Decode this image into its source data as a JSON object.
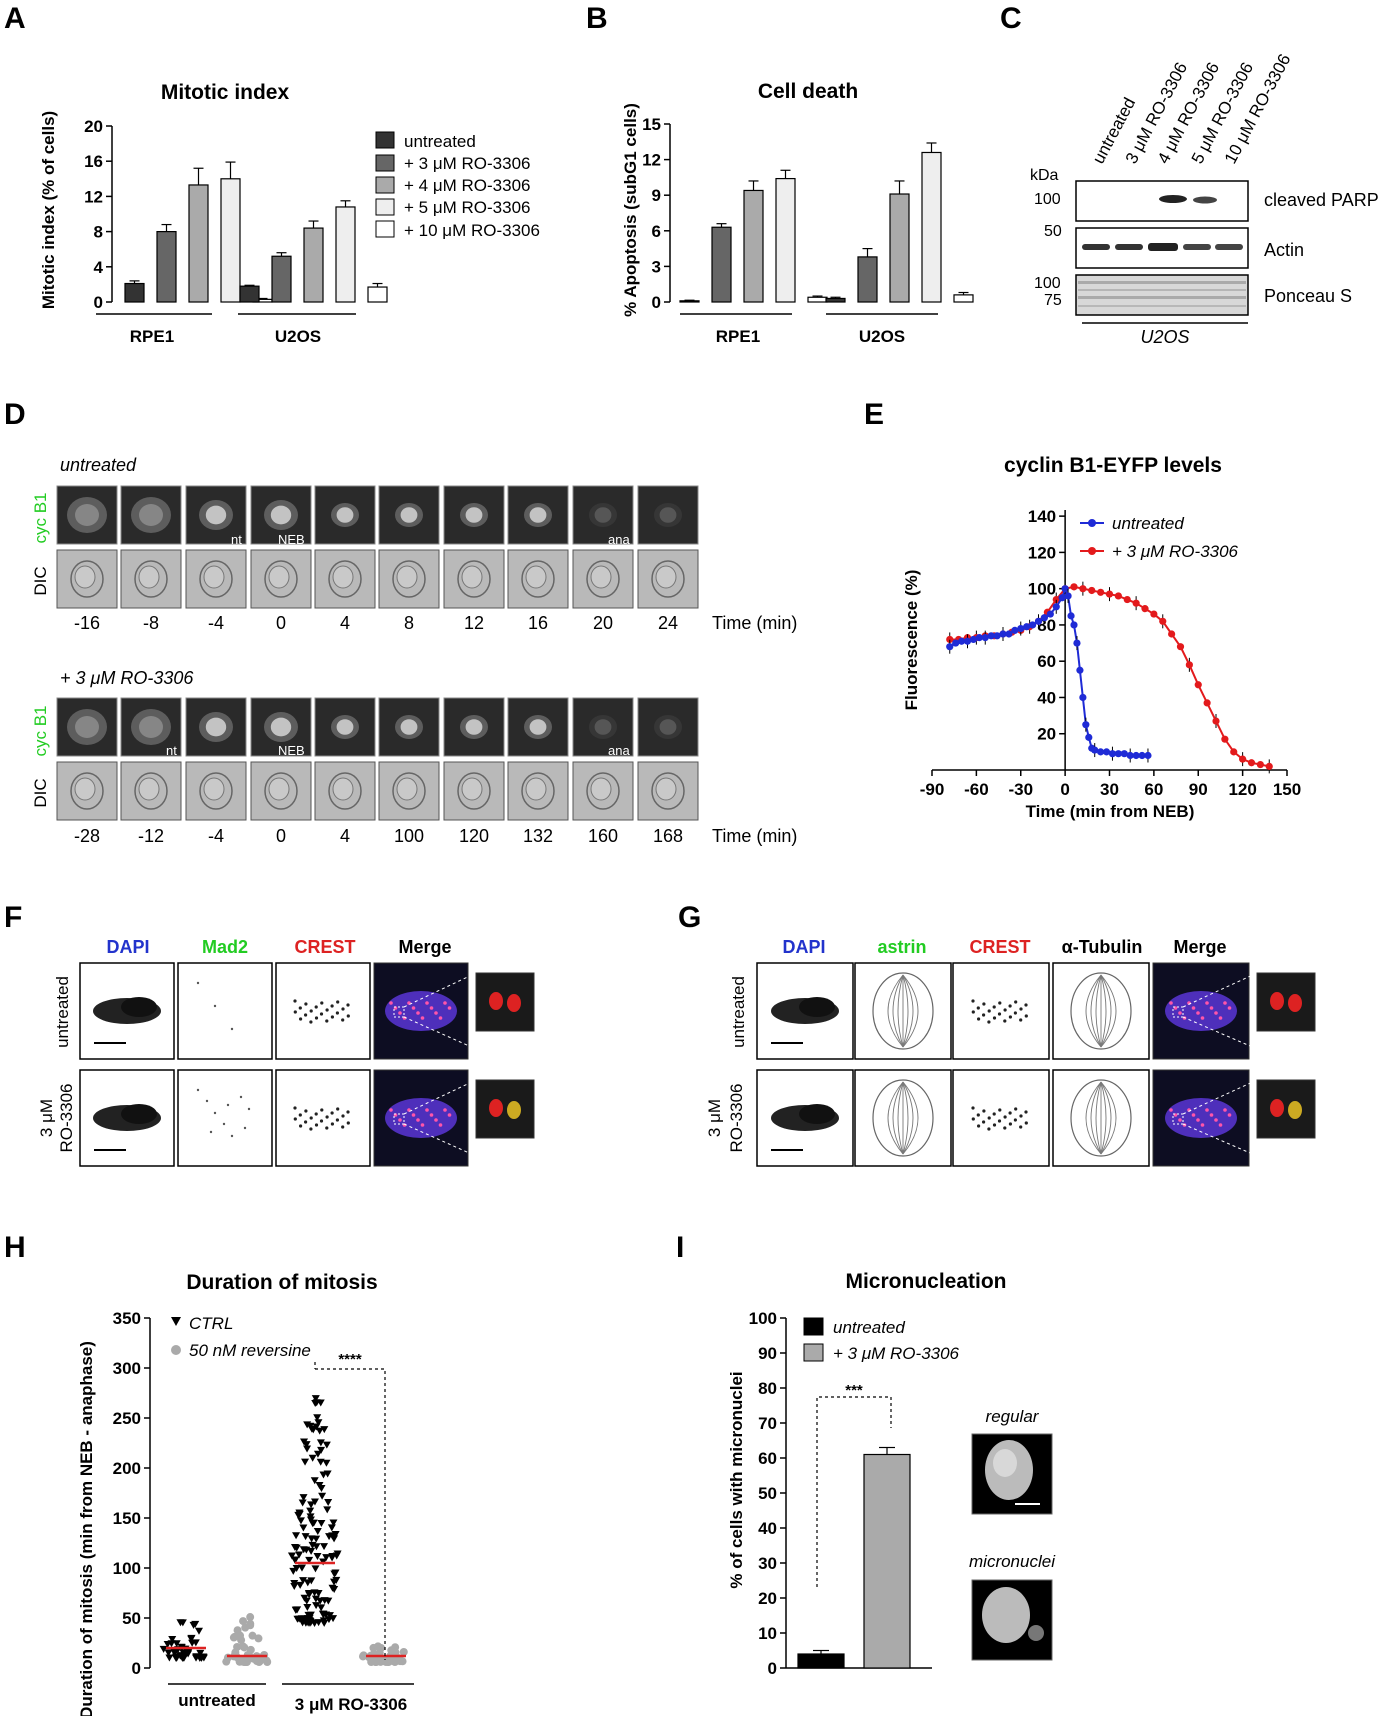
{
  "panels": {
    "A": {
      "letter": "A",
      "title": "Mitotic index",
      "ylabel": "Mitotic index (% of cells)",
      "yticks": [
        "20",
        "16",
        "12",
        "8",
        "4",
        "0"
      ],
      "groups": [
        "RPE1",
        "U2OS"
      ]
    },
    "B": {
      "letter": "B",
      "title": "Cell death",
      "ylabel": "% Apoptosis (subG1 cells)",
      "yticks": [
        "15",
        "12",
        "9",
        "6",
        "3",
        "0"
      ],
      "groups": [
        "RPE1",
        "U2OS"
      ]
    },
    "C": {
      "letter": "C",
      "lanes": [
        "untreated",
        "3 μM RO-3306",
        "4 μM RO-3306",
        "5 μM RO-3306",
        "10 μM RO-3306"
      ],
      "kda": "kDa",
      "mw": [
        "100",
        "50",
        "100",
        "75"
      ],
      "blots": [
        "cleaved PARP",
        "Actin",
        "Ponceau S"
      ],
      "cell_line": "U2OS"
    },
    "D": {
      "letter": "D",
      "cond1": "untreated",
      "cond2": "+ 3 μM RO-3306",
      "row_cyc": "cyc B1",
      "row_dic": "DIC",
      "times1": [
        "-16",
        "-8",
        "-4",
        "0",
        "4",
        "8",
        "12",
        "16",
        "20",
        "24"
      ],
      "times2": [
        "-28",
        "-12",
        "-4",
        "0",
        "4",
        "100",
        "120",
        "132",
        "160",
        "168"
      ],
      "time_unit": "Time (min)",
      "tags1": {
        "nt": "nt",
        "neb": "NEB",
        "ana": "ana"
      },
      "tags2": {
        "nt": "nt",
        "neb": "NEB",
        "ana": "ana"
      }
    },
    "E": {
      "letter": "E",
      "title": "cyclin B1-EYFP levels",
      "ylabel": "Fluorescence (%)",
      "xlabel": "Time (min from NEB)",
      "yticks": [
        "140",
        "120",
        "100",
        "80",
        "60",
        "40",
        "20"
      ],
      "xticks": [
        "-90",
        "-60",
        "-30",
        "0",
        "30",
        "60",
        "90",
        "120",
        "150"
      ],
      "legend": [
        "untreated",
        "+ 3 μM RO-3306"
      ]
    },
    "F": {
      "letter": "F",
      "cols": [
        "DAPI",
        "Mad2",
        "CREST",
        "Merge"
      ],
      "rows": [
        "untreated",
        "3 μM",
        "RO-3306"
      ]
    },
    "G": {
      "letter": "G",
      "cols": [
        "DAPI",
        "astrin",
        "CREST",
        "α-Tubulin",
        "Merge"
      ],
      "rows": [
        "untreated",
        "3 μM",
        "RO-3306"
      ]
    },
    "H": {
      "letter": "H",
      "title": "Duration of mitosis",
      "ylabel": "Duration of mitosis (min from NEB - anaphase)",
      "yticks": [
        "350",
        "300",
        "250",
        "200",
        "150",
        "100",
        "50",
        "0"
      ],
      "groups": [
        "untreated",
        "3 μM RO-3306"
      ],
      "legend": [
        "CTRL",
        "50 nM reversine"
      ],
      "sig": "****"
    },
    "I": {
      "letter": "I",
      "title": "Micronucleation",
      "ylabel": "% of cells with micronuclei",
      "yticks": [
        "100",
        "90",
        "80",
        "70",
        "60",
        "50",
        "40",
        "30",
        "20",
        "10",
        "0"
      ],
      "legend": [
        "untreated",
        "+ 3 μM RO-3306"
      ],
      "sig": "***",
      "img1": "regular",
      "img2": "micronuclei"
    }
  },
  "legendA": [
    "untreated",
    "+ 3 μM RO-3306",
    "+ 4 μM RO-3306",
    "+ 5 μM RO-3306",
    "+ 10 μM RO-3306"
  ],
  "colors": {
    "c0": "#333333",
    "c1": "#666666",
    "c2": "#aaaaaa",
    "c3": "#eeeeee",
    "c4": "#ffffff",
    "blue": "#1f2bd6",
    "red": "#e31a1c",
    "green": "#22cc22",
    "sig_red": "#dd2222"
  },
  "chart_data": [
    {
      "type": "bar",
      "panel": "A",
      "title": "Mitotic index",
      "ylabel": "Mitotic index (% of cells)",
      "ylim": [
        0,
        20
      ],
      "categories": [
        "RPE1",
        "U2OS"
      ],
      "series": [
        {
          "name": "untreated",
          "values": [
            2.1,
            1.8
          ],
          "err": [
            0.3,
            0.1
          ]
        },
        {
          "name": "+ 3 μM RO-3306",
          "values": [
            8.0,
            5.2
          ],
          "err": [
            0.8,
            0.4
          ]
        },
        {
          "name": "+ 4 μM RO-3306",
          "values": [
            13.3,
            8.4
          ],
          "err": [
            1.9,
            0.8
          ]
        },
        {
          "name": "+ 5 μM RO-3306",
          "values": [
            14.0,
            10.8
          ],
          "err": [
            1.9,
            0.7
          ]
        },
        {
          "name": "+ 10 μM RO-3306",
          "values": [
            0.3,
            1.7
          ],
          "err": [
            0.1,
            0.4
          ]
        }
      ]
    },
    {
      "type": "bar",
      "panel": "B",
      "title": "Cell death",
      "ylabel": "% Apoptosis (subG1 cells)",
      "ylim": [
        0,
        15
      ],
      "categories": [
        "RPE1",
        "U2OS"
      ],
      "series": [
        {
          "name": "untreated",
          "values": [
            0.1,
            0.3
          ],
          "err": [
            0.05,
            0.1
          ]
        },
        {
          "name": "+ 3 μM RO-3306",
          "values": [
            6.3,
            3.8
          ],
          "err": [
            0.3,
            0.7
          ]
        },
        {
          "name": "+ 4 μM RO-3306",
          "values": [
            9.4,
            9.1
          ],
          "err": [
            0.8,
            1.1
          ]
        },
        {
          "name": "+ 5 μM RO-3306",
          "values": [
            10.4,
            12.6
          ],
          "err": [
            0.7,
            0.8
          ]
        },
        {
          "name": "+ 10 μM RO-3306",
          "values": [
            0.4,
            0.6
          ],
          "err": [
            0.1,
            0.2
          ]
        }
      ]
    },
    {
      "type": "line",
      "panel": "E",
      "title": "cyclin B1-EYFP levels",
      "xlabel": "Time (min from NEB)",
      "ylabel": "Fluorescence (%)",
      "xlim": [
        -90,
        150
      ],
      "ylim": [
        0,
        140
      ],
      "series": [
        {
          "name": "untreated",
          "x": [
            -78,
            -74,
            -70,
            -66,
            -62,
            -58,
            -54,
            -50,
            -46,
            -42,
            -38,
            -34,
            -30,
            -26,
            -22,
            -18,
            -14,
            -10,
            -6,
            -2,
            0,
            2,
            4,
            6,
            8,
            10,
            12,
            14,
            16,
            18,
            20,
            24,
            28,
            32,
            36,
            40,
            44,
            48,
            52,
            56
          ],
          "y": [
            68,
            70,
            71,
            71,
            72,
            73,
            73,
            74,
            74,
            75,
            75,
            77,
            78,
            79,
            80,
            82,
            84,
            86,
            90,
            95,
            100,
            96,
            85,
            80,
            70,
            55,
            40,
            25,
            18,
            12,
            11,
            10,
            10,
            9,
            9,
            9,
            8,
            8,
            8,
            8
          ]
        },
        {
          "name": "+ 3 μM RO-3306",
          "x": [
            -78,
            -72,
            -66,
            -60,
            -54,
            -48,
            -42,
            -36,
            -30,
            -24,
            -18,
            -12,
            -6,
            0,
            6,
            12,
            18,
            24,
            30,
            36,
            42,
            48,
            54,
            60,
            66,
            72,
            78,
            84,
            90,
            96,
            102,
            108,
            114,
            120,
            126,
            132,
            138
          ],
          "y": [
            72,
            72,
            73,
            73,
            74,
            74,
            75,
            76,
            77,
            79,
            82,
            87,
            94,
            100,
            101,
            100,
            99,
            98,
            97,
            96,
            94,
            92,
            89,
            86,
            82,
            75,
            68,
            58,
            47,
            37,
            27,
            17,
            10,
            6,
            4,
            3,
            2
          ]
        }
      ]
    },
    {
      "type": "scatter",
      "panel": "H",
      "title": "Duration of mitosis",
      "ylabel": "Duration of mitosis (min from NEB - anaphase)",
      "ylim": [
        0,
        350
      ],
      "categories": [
        "untreated",
        "3 μM RO-3306"
      ],
      "series": [
        {
          "name": "CTRL",
          "mean": [
            20,
            105
          ],
          "range": [
            [
              10,
              50
            ],
            [
              45,
              280
            ]
          ]
        },
        {
          "name": "50 nM reversine",
          "mean": [
            12,
            12
          ],
          "range": [
            [
              6,
              55
            ],
            [
              6,
              22
            ]
          ]
        }
      ]
    },
    {
      "type": "bar",
      "panel": "I",
      "title": "Micronucleation",
      "ylabel": "% of cells with micronuclei",
      "ylim": [
        0,
        100
      ],
      "categories": [
        "untreated",
        "+ 3 μM RO-3306"
      ],
      "values": [
        4,
        61
      ],
      "err": [
        1,
        2
      ]
    }
  ]
}
